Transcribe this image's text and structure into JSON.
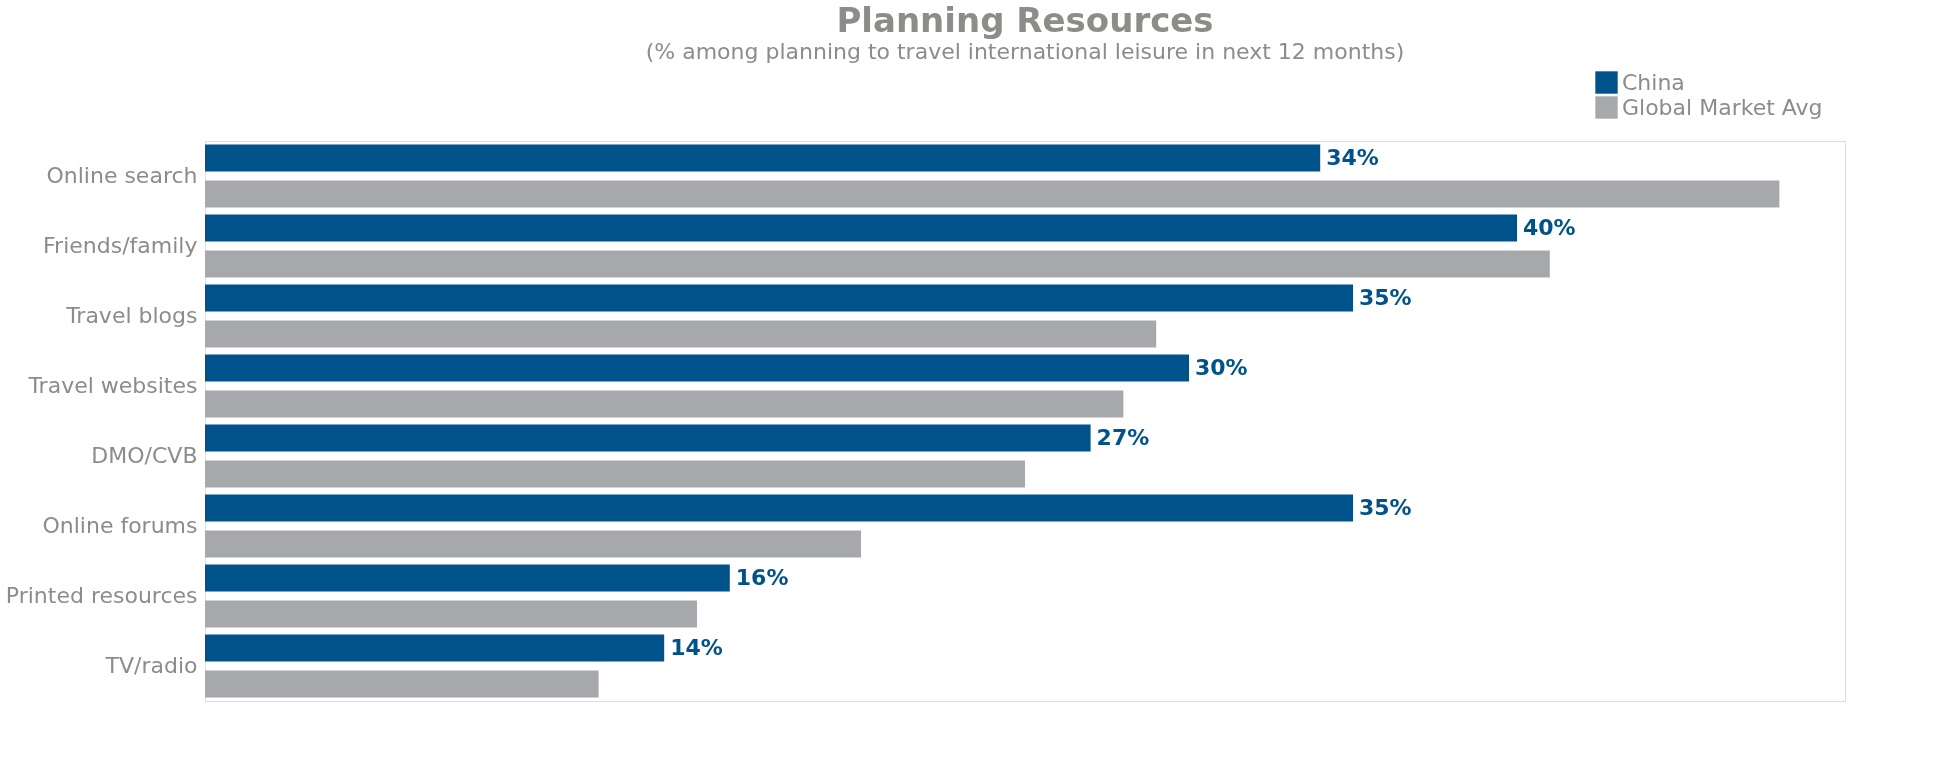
{
  "chart_data": {
    "type": "bar",
    "orientation": "horizontal",
    "title": "Planning Resources",
    "subtitle": "(% among planning to travel international leisure in next 12 months)",
    "categories": [
      "Online search",
      "Friends/family",
      "Travel blogs",
      "Travel websites",
      "DMO/CVB",
      "Online forums",
      "Printed resources",
      "TV/radio"
    ],
    "series": [
      {
        "name": "China",
        "color": "#00538a",
        "values": [
          34,
          40,
          35,
          30,
          27,
          35,
          16,
          14
        ],
        "value_labels": [
          "34%",
          "40%",
          "35%",
          "30%",
          "27%",
          "35%",
          "16%",
          "14%"
        ]
      },
      {
        "name": "Global Market Avg",
        "color": "#a7a8ac",
        "values": [
          48,
          41,
          29,
          28,
          25,
          20,
          15,
          12
        ]
      }
    ],
    "legend": "top right",
    "grid": false,
    "tick_labels": "y"
  }
}
